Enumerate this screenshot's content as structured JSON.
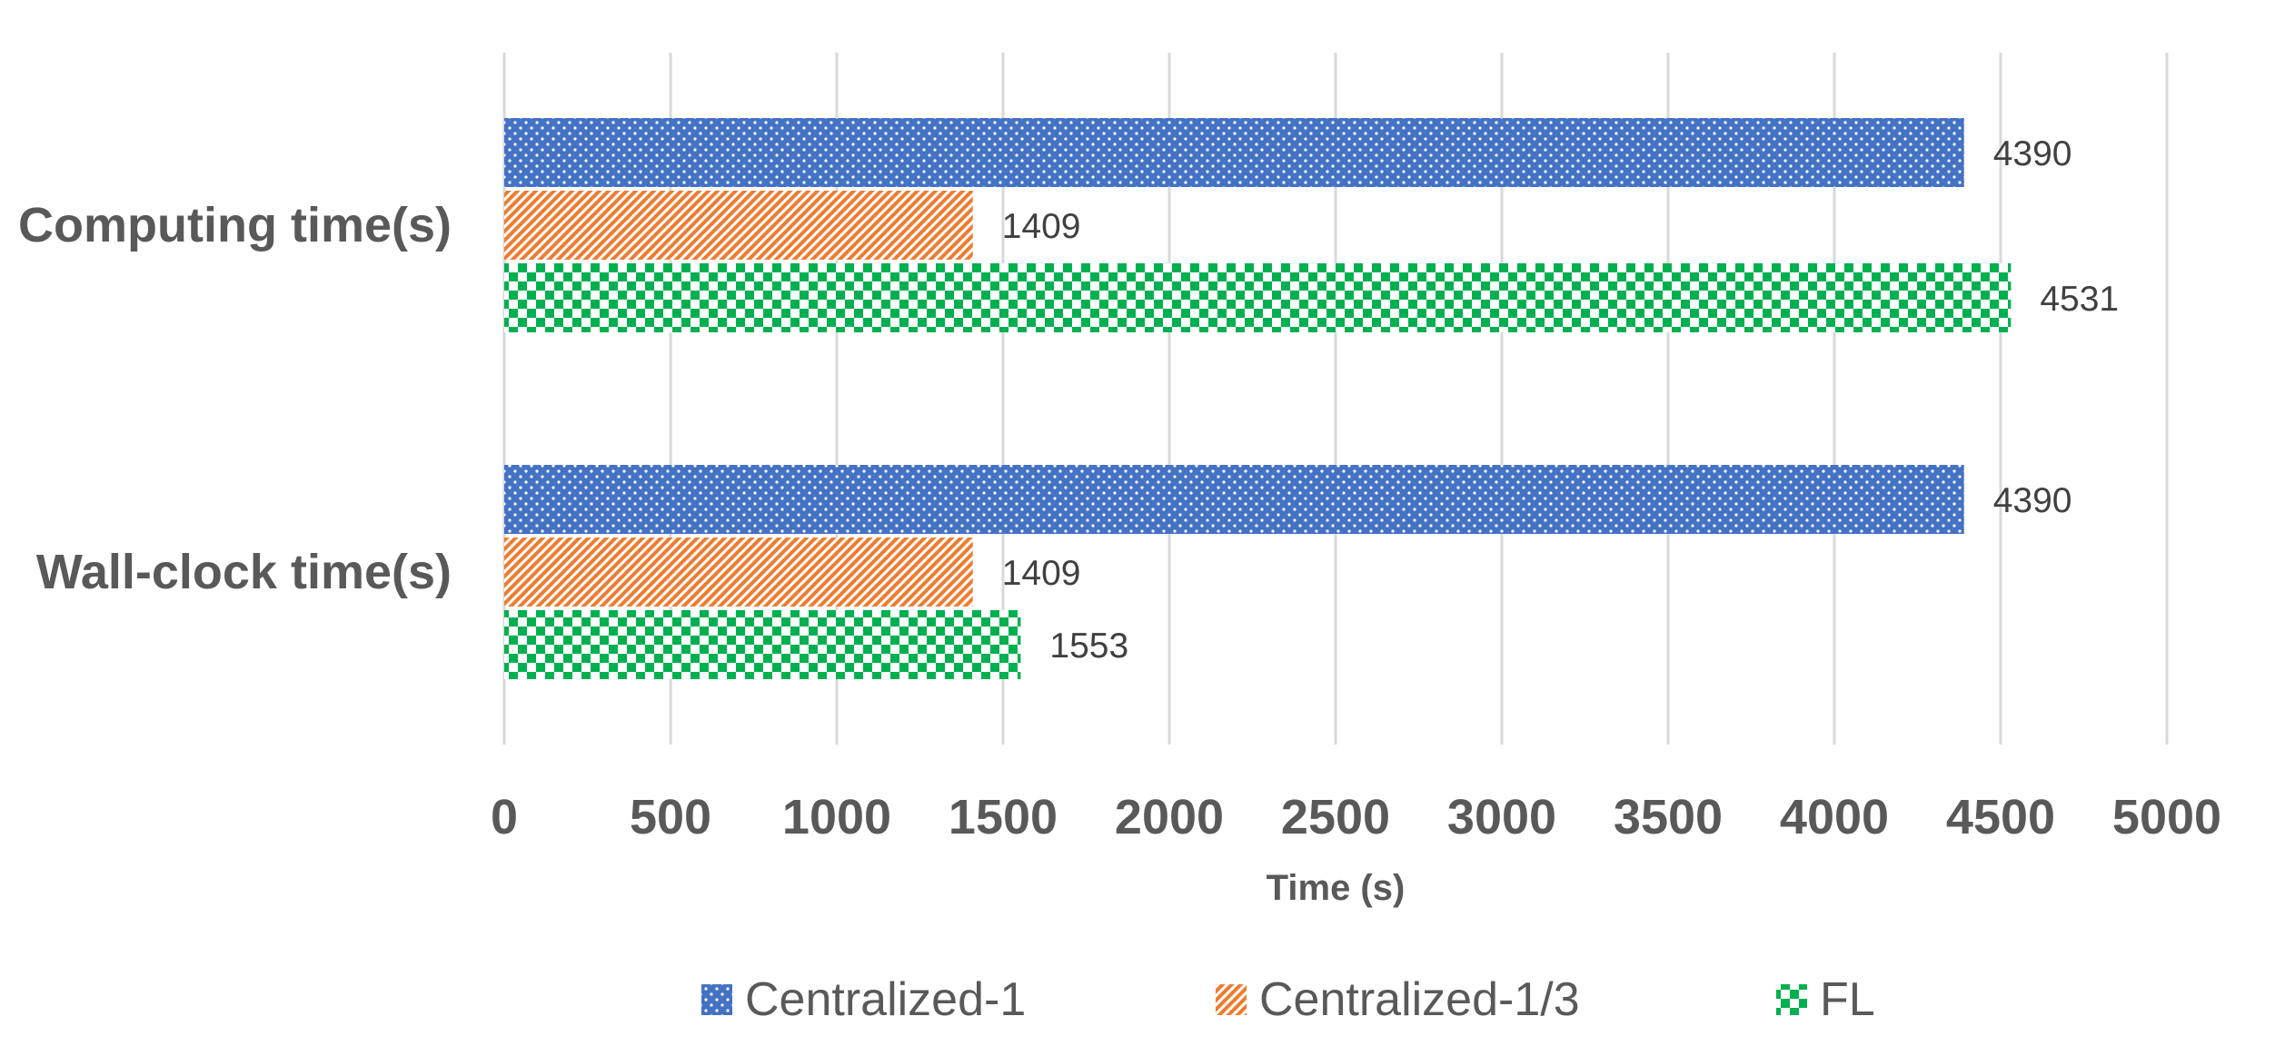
{
  "chart_data": {
    "type": "bar",
    "orientation": "horizontal",
    "categories": [
      "Computing time(s)",
      "Wall-clock time(s)"
    ],
    "series": [
      {
        "name": "Centralized-1",
        "values": [
          4390,
          4390
        ],
        "color": "#4472c4",
        "pattern": "dots"
      },
      {
        "name": "Centralized-1/3",
        "values": [
          1409,
          1409
        ],
        "color": "#ed7d31",
        "pattern": "diagonal-stripes"
      },
      {
        "name": "FL",
        "values": [
          4531,
          1553
        ],
        "color": "#00b050",
        "pattern": "checkerboard"
      }
    ],
    "xlabel": "Time (s)",
    "ylabel": "",
    "xlim": [
      0,
      5000
    ],
    "xticks": [
      0,
      500,
      1000,
      1500,
      2000,
      2500,
      3000,
      3500,
      4000,
      4500,
      5000
    ],
    "grid": "vertical",
    "legend": "bottom",
    "data_labels": true
  }
}
